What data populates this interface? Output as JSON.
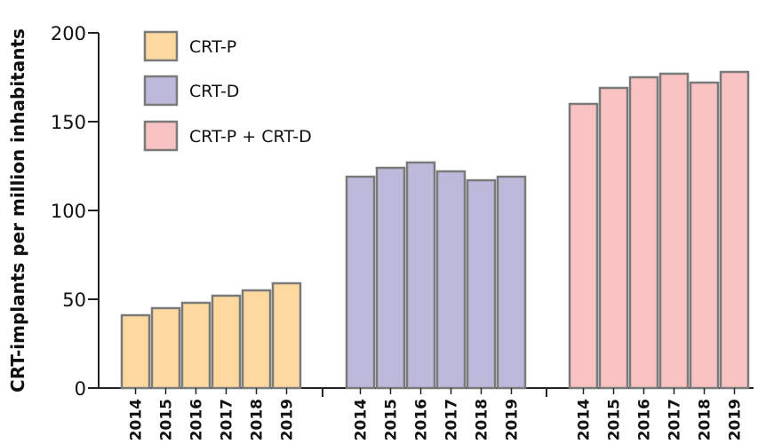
{
  "chart_data": {
    "type": "bar",
    "ylabel": "CRT-implants per million inhabitants",
    "xlabel": "",
    "ylim": [
      0,
      200
    ],
    "yticks": [
      0,
      50,
      100,
      150,
      200
    ],
    "grid": false,
    "legend_position": "top-left",
    "categories": [
      "2014",
      "2015",
      "2016",
      "2017",
      "2018",
      "2019"
    ],
    "series": [
      {
        "name": "CRT-P",
        "color": "#FDD9A0",
        "values": [
          41,
          45,
          48,
          52,
          55,
          59
        ]
      },
      {
        "name": "CRT-D",
        "color": "#BDB9DA",
        "values": [
          119,
          124,
          127,
          122,
          117,
          119
        ]
      },
      {
        "name": "CRT-P + CRT-D",
        "color": "#F8C2C3",
        "values": [
          160,
          169,
          175,
          177,
          172,
          178
        ]
      }
    ]
  }
}
